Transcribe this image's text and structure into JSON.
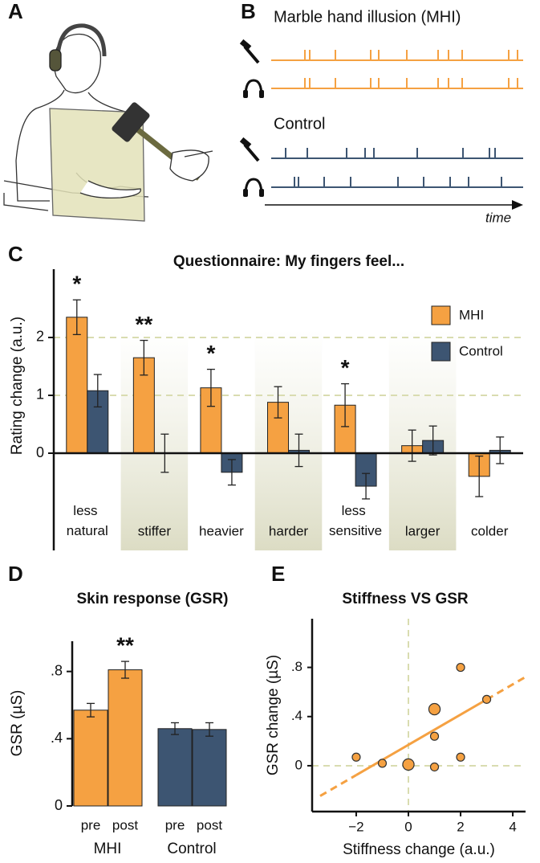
{
  "figure_a": {
    "panel": "A"
  },
  "chart_data": [
    {
      "type": "timeline",
      "panel": "B",
      "title": "Marble hand illusion (MHI)",
      "subtitle": "Control",
      "xlabel": "time"
    },
    {
      "type": "bar",
      "panel": "C",
      "title": "Questionnaire: My fingers feel...",
      "ylabel": "Rating change (a.u.)",
      "categories": [
        "less natural",
        "stiffer",
        "heavier",
        "harder",
        "less sensitive",
        "larger",
        "colder"
      ],
      "series": [
        {
          "name": "MHI",
          "color": "#f5a142",
          "values": [
            2.35,
            1.65,
            1.13,
            0.88,
            0.83,
            0.13,
            -0.4
          ],
          "errors": [
            0.3,
            0.3,
            0.32,
            0.27,
            0.37,
            0.27,
            0.35
          ]
        },
        {
          "name": "Control",
          "color": "#3d5572",
          "values": [
            1.08,
            0,
            -0.33,
            0.05,
            -0.57,
            0.22,
            0.05
          ],
          "errors": [
            0.28,
            0.33,
            0.22,
            0.28,
            0.22,
            0.25,
            0.23
          ]
        }
      ],
      "significance": [
        "*",
        "**",
        "*",
        null,
        "*",
        null,
        null
      ],
      "ylim": [
        -1.68,
        3.18
      ],
      "yticks": [
        0,
        1,
        2
      ],
      "grid": true,
      "legend": "upper right"
    },
    {
      "type": "bar",
      "panel": "D",
      "title": "Skin response (GSR)",
      "ylabel": "GSR (µS)",
      "categories": [
        "pre",
        "post"
      ],
      "series": [
        {
          "name": "MHI",
          "color": "#f5a142",
          "values": [
            0.57,
            0.81
          ],
          "errors": [
            0.04,
            0.05
          ]
        },
        {
          "name": "Control",
          "color": "#3d5572",
          "values": [
            0.46,
            0.455
          ],
          "errors": [
            0.035,
            0.04
          ]
        }
      ],
      "significance": [
        [
          null,
          "**"
        ],
        [
          null,
          null
        ]
      ],
      "ylim": [
        0,
        0.98
      ],
      "yticks": [
        0,
        {
          "value": 0.4,
          "label": ".4"
        },
        {
          "value": 0.8,
          "label": ".8"
        }
      ],
      "grid": false
    },
    {
      "type": "scatter",
      "panel": "E",
      "title": "Stiffness VS GSR",
      "xlabel": "Stiffness change (a.u.)",
      "ylabel": "GSR change (µS)",
      "color": "#f5a142",
      "x": [
        -2,
        -1,
        0,
        1,
        1,
        1,
        2,
        2,
        3
      ],
      "values": [
        0.07,
        0.02,
        0.01,
        0.46,
        0.24,
        -0.01,
        0.8,
        0.07,
        0.54
      ],
      "sizes": [
        1,
        1,
        2,
        2,
        1,
        1,
        1,
        1,
        1
      ],
      "fit": {
        "slope": 0.123,
        "intercept": 0.17
      },
      "xlim": [
        -3.69,
        4.49
      ],
      "xticks": [
        {
          "value": -2,
          "label": "−2"
        },
        0,
        2,
        4
      ],
      "ylim": [
        -0.373,
        1.196
      ],
      "yticks": [
        0,
        {
          "value": 0.4,
          "label": ".4"
        },
        {
          "value": 0.8,
          "label": ".8"
        }
      ],
      "zero_lines": true
    }
  ]
}
